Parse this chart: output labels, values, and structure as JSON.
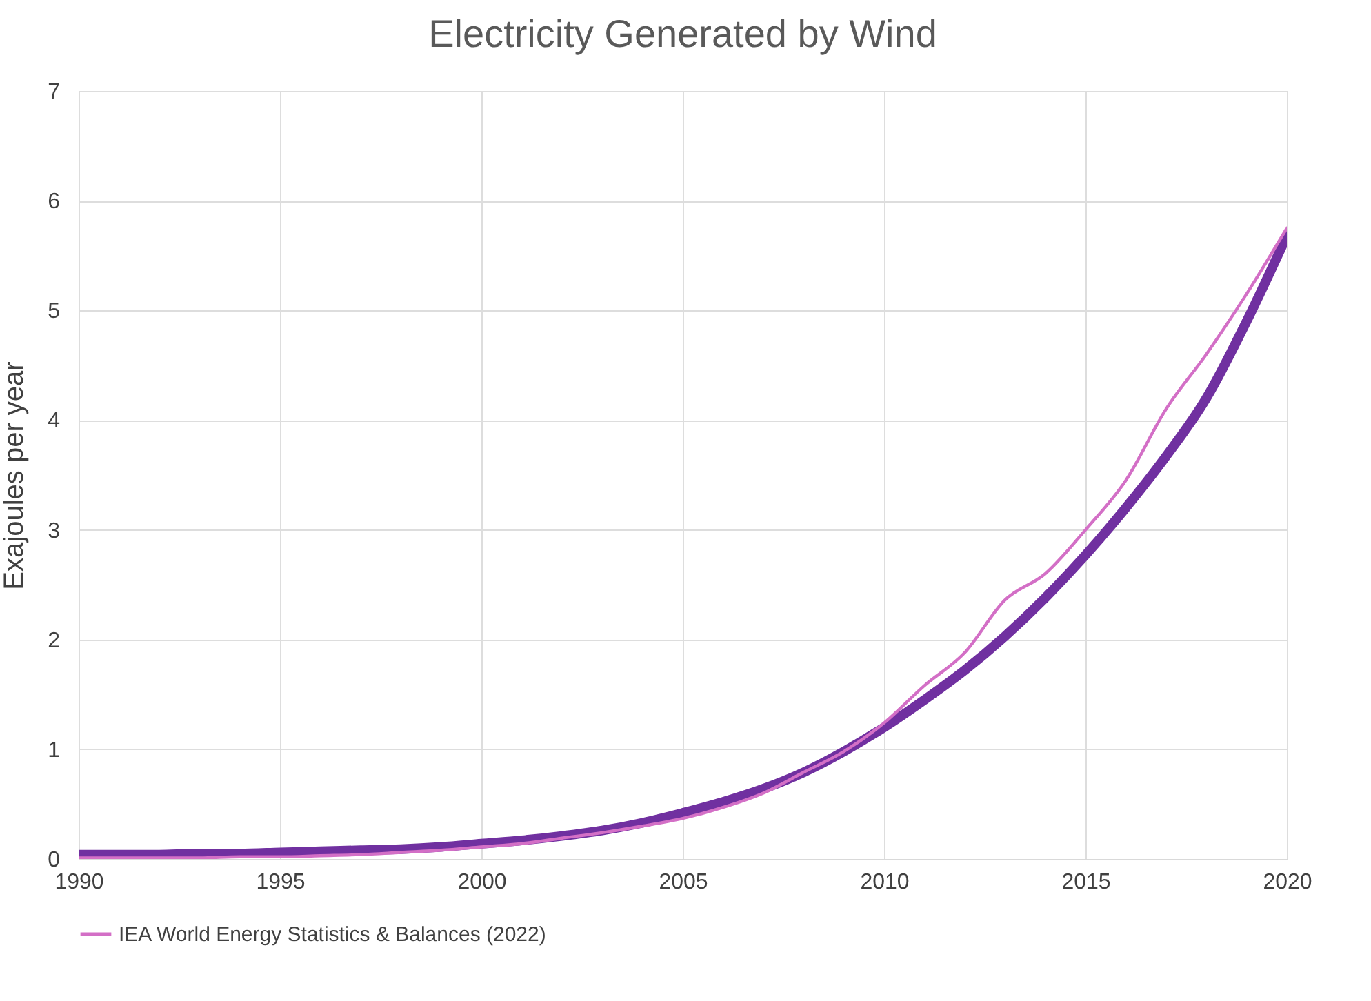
{
  "chart_data": {
    "type": "line",
    "title": "Electricity Generated by Wind",
    "ylabel": "Exajoules per year",
    "x": [
      1990,
      1991,
      1992,
      1993,
      1994,
      1995,
      1996,
      1997,
      1998,
      1999,
      2000,
      2001,
      2002,
      2003,
      2004,
      2005,
      2006,
      2007,
      2008,
      2009,
      2010,
      2011,
      2012,
      2013,
      2014,
      2015,
      2016,
      2017,
      2018,
      2019,
      2020
    ],
    "series": [
      {
        "color": "#7030a0",
        "values": [
          0.04,
          0.04,
          0.04,
          0.05,
          0.05,
          0.06,
          0.07,
          0.08,
          0.09,
          0.11,
          0.14,
          0.17,
          0.21,
          0.26,
          0.33,
          0.42,
          0.52,
          0.64,
          0.79,
          0.98,
          1.2,
          1.45,
          1.72,
          2.03,
          2.38,
          2.77,
          3.2,
          3.67,
          4.2,
          4.9,
          5.68
        ]
      },
      {
        "name": "IEA World Energy Statistics & Balances (2022)",
        "color": "#d36fc6",
        "values": [
          0.01,
          0.01,
          0.01,
          0.01,
          0.02,
          0.02,
          0.03,
          0.04,
          0.06,
          0.08,
          0.11,
          0.14,
          0.19,
          0.24,
          0.3,
          0.37,
          0.47,
          0.6,
          0.79,
          0.98,
          1.24,
          1.58,
          1.88,
          2.36,
          2.6,
          3.0,
          3.45,
          4.1,
          4.6,
          5.15,
          5.75
        ]
      }
    ],
    "xlim": [
      1990,
      2020
    ],
    "xticks": [
      1990,
      1995,
      2000,
      2005,
      2010,
      2015,
      2020
    ],
    "ylim": [
      0,
      7
    ],
    "yticks": [
      0,
      1,
      2,
      3,
      4,
      5,
      6,
      7
    ],
    "grid": true,
    "legend": "bottom",
    "marker": "none",
    "line_style": "solid"
  }
}
